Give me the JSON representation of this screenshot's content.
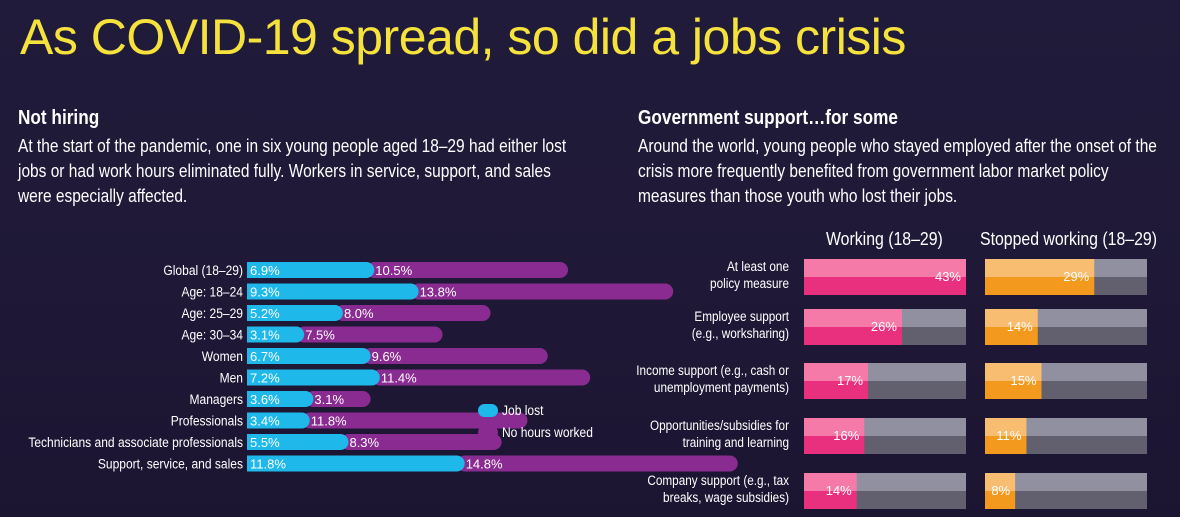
{
  "title": "As COVID-19 spread, so did a jobs crisis",
  "left": {
    "heading": "Not hiring",
    "text": "At the start of the pandemic, one in six young people aged 18–29 had either lost jobs or had work hours eliminated fully. Workers in service, support, and sales were especially affected."
  },
  "right": {
    "heading": "Government support…for some",
    "text": "Around the world, young people who stayed employed after the onset of the crisis more frequently benefited from government labor market policy measures than those youth who lost their jobs.",
    "col_working": "Working (18–29)",
    "col_stopped": "Stopped working (18–29)"
  },
  "chart_data": [
    {
      "type": "bar",
      "orientation": "horizontal",
      "stacked": true,
      "categories": [
        "Global (18–29)",
        "Age: 18–24",
        "Age: 25–29",
        "Age: 30–34",
        "Women",
        "Men",
        "Managers",
        "Professionals",
        "Technicians and associate professionals",
        "Support, service, and sales"
      ],
      "series": [
        {
          "name": "Job lost",
          "color": "#1fb8ea",
          "values": [
            6.9,
            9.3,
            5.2,
            3.1,
            6.7,
            7.2,
            3.6,
            3.4,
            5.5,
            11.8
          ],
          "labels": [
            "6.9%",
            "9.3%",
            "5.2%",
            "3.1%",
            "6.7%",
            "7.2%",
            "3.6%",
            "3.4%",
            "5.5%",
            "11.8%"
          ]
        },
        {
          "name": "No hours worked",
          "color": "#8a2b91",
          "values": [
            10.5,
            13.8,
            8.0,
            7.5,
            9.6,
            11.4,
            3.1,
            11.8,
            8.3,
            14.8
          ],
          "labels": [
            "10.5%",
            "13.8%",
            "8.0%",
            "7.5%",
            "9.6%",
            "11.4%",
            "3.1%",
            "11.8%",
            "8.3%",
            "14.8%"
          ]
        }
      ],
      "legend": [
        "Job lost",
        "No hours worked"
      ]
    },
    {
      "type": "bar",
      "orientation": "horizontal",
      "title": "Working (18–29)",
      "categories": [
        "At least one policy measure",
        "Employee support (e.g., worksharing)",
        "Income support (e.g., cash or unemployment payments)",
        "Opportunities/subsidies for training and learning",
        "Company support (e.g., tax breaks, wage subsidies)"
      ],
      "category_lines": [
        [
          "At least one",
          "policy measure"
        ],
        [
          "Employee support",
          "(e.g., worksharing)"
        ],
        [
          "Income support (e.g., cash or",
          "unemployment payments)"
        ],
        [
          "Opportunities/subsidies for",
          "training and learning"
        ],
        [
          "Company support (e.g., tax",
          "breaks, wage subsidies)"
        ]
      ],
      "values": [
        43,
        26,
        17,
        16,
        14
      ],
      "labels": [
        "43%",
        "26%",
        "17%",
        "16%",
        "14%"
      ],
      "max": 43,
      "color": "#e8307e",
      "color_light": "#f57aa8"
    },
    {
      "type": "bar",
      "orientation": "horizontal",
      "title": "Stopped working (18–29)",
      "categories": [
        "At least one policy measure",
        "Employee support (e.g., worksharing)",
        "Income support (e.g., cash or unemployment payments)",
        "Opportunities/subsidies for training and learning",
        "Company support (e.g., tax breaks, wage subsidies)"
      ],
      "values": [
        29,
        14,
        15,
        11,
        8
      ],
      "labels": [
        "29%",
        "14%",
        "15%",
        "11%",
        "8%"
      ],
      "max": 43,
      "color": "#f39a1e",
      "color_light": "#f8bd70"
    }
  ]
}
